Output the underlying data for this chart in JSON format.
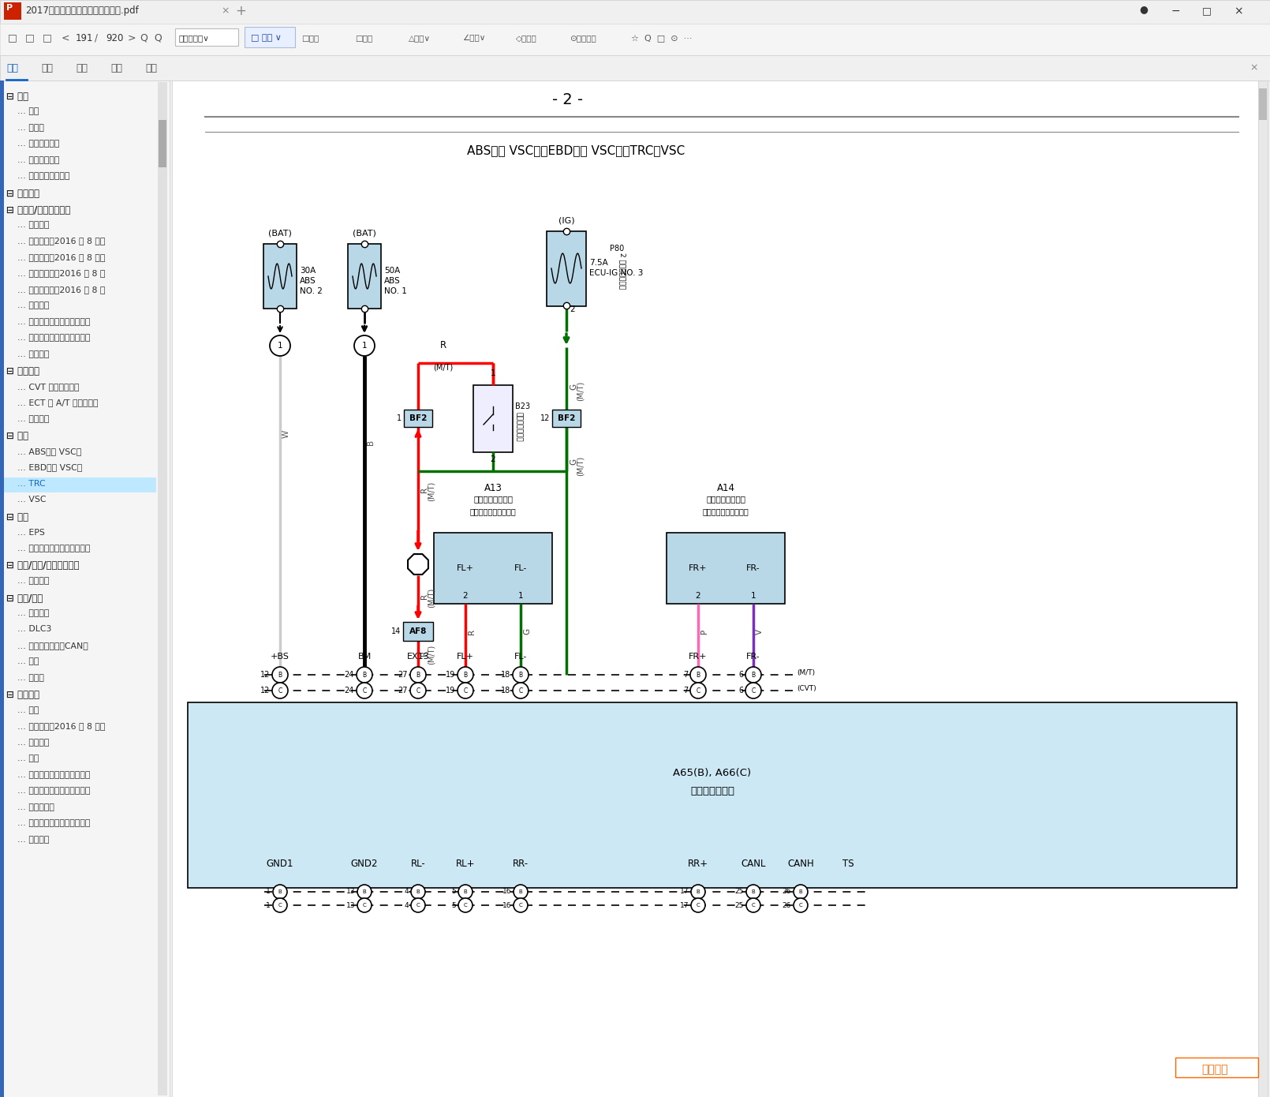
{
  "title_tab": "2017年丰田威驰雅力士致炫电路图.pdf",
  "page_number": "191",
  "total_pages": "920",
  "page_label": "- 2 -",
  "circuit_title": "ABS（带 VSC），EBD（带 VSC），TRC，VSC",
  "tree_items": [
    {
      "level": 0,
      "text": "概述",
      "expanded": true
    },
    {
      "level": 1,
      "text": "概述"
    },
    {
      "level": 1,
      "text": "缩略语"
    },
    {
      "level": 1,
      "text": "术语和符号表"
    },
    {
      "level": 1,
      "text": "线束维修概述"
    },
    {
      "level": 1,
      "text": "端子和连接器维修"
    },
    {
      "level": 0,
      "text": "系统电路"
    },
    {
      "level": 0,
      "text": "发动机/混合动力系统",
      "expanded": true
    },
    {
      "level": 1,
      "text": "冷却风扇"
    },
    {
      "level": 1,
      "text": "巡航控制（2016 年 8 月之"
    },
    {
      "level": 1,
      "text": "巡航控制（2016 年 8 月之"
    },
    {
      "level": 1,
      "text": "发动机控制（2016 年 8 月"
    },
    {
      "level": 1,
      "text": "发动机控制（2016 年 8 月"
    },
    {
      "level": 1,
      "text": "点火系统"
    },
    {
      "level": 1,
      "text": "起动（带智能上车和起动系"
    },
    {
      "level": 1,
      "text": "起动（不带智能上车和起动"
    },
    {
      "level": 1,
      "text": "启停系统"
    },
    {
      "level": 0,
      "text": "传动系统",
      "expanded": true
    },
    {
      "level": 1,
      "text": "CVT 和换档指示灯"
    },
    {
      "level": 1,
      "text": "ECT 和 A/T 档位指示器"
    },
    {
      "level": 1,
      "text": "换档锁止"
    },
    {
      "level": 0,
      "text": "制动",
      "expanded": true
    },
    {
      "level": 1,
      "text": "ABS（带 VSC）"
    },
    {
      "level": 1,
      "text": "EBD（带 VSC）"
    },
    {
      "level": 1,
      "text": "TRC",
      "highlighted": true
    },
    {
      "level": 1,
      "text": "VSC"
    },
    {
      "level": 0,
      "text": "转向",
      "expanded": true
    },
    {
      "level": 1,
      "text": "EPS"
    },
    {
      "level": 1,
      "text": "转向锁（带智能上车和起动"
    },
    {
      "level": 0,
      "text": "音频/视频/车载通信系统",
      "expanded": true
    },
    {
      "level": 1,
      "text": "音响系统"
    },
    {
      "level": 0,
      "text": "电源/网络",
      "expanded": true
    },
    {
      "level": 1,
      "text": "充电系统"
    },
    {
      "level": 1,
      "text": "DLC3"
    },
    {
      "level": 1,
      "text": "多路通信系统（CAN）"
    },
    {
      "level": 1,
      "text": "电源"
    },
    {
      "level": 1,
      "text": "搞铁点"
    },
    {
      "level": 0,
      "text": "车辆内饰",
      "expanded": true
    },
    {
      "level": 1,
      "text": "空调"
    },
    {
      "level": 1,
      "text": "组合仓表（2016 年 8 月之"
    },
    {
      "level": 1,
      "text": "门锁控制"
    },
    {
      "level": 1,
      "text": "照明"
    },
    {
      "level": 1,
      "text": "停机系统（带智能上车和启"
    },
    {
      "level": 1,
      "text": "停机系统（不带智能上车和"
    },
    {
      "level": 1,
      "text": "车内照明灯"
    },
    {
      "level": 1,
      "text": "锥匙提醒器（不带智能上车"
    },
    {
      "level": 1,
      "text": "电源插座"
    }
  ],
  "bg_color": "#f0f0f0",
  "sidebar_bg": "#f5f5f5",
  "content_bg": "#ffffff",
  "fuse_color": "#b8d8e8",
  "wire_red": "#ff0000",
  "wire_green": "#007000",
  "wire_black": "#000000",
  "wire_white": "#cccccc",
  "wire_pink": "#ff69b4",
  "wire_purple": "#7b2fbe",
  "connector_fill": "#b8d8e8",
  "bottom_bar_bg": "#cde8f5",
  "watermark_text": "汽修帮手",
  "watermark_color": "#ff6600"
}
